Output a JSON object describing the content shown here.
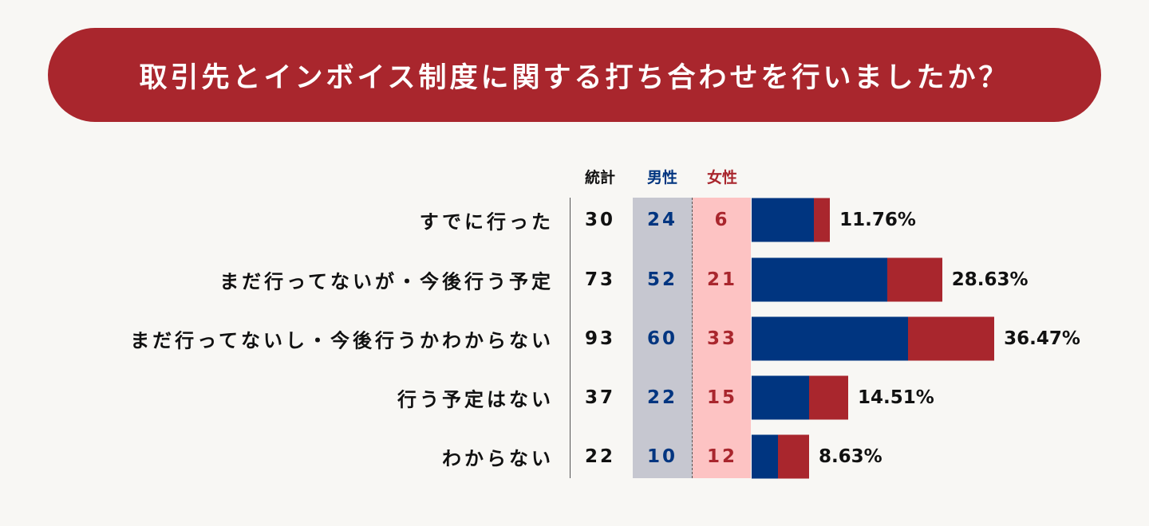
{
  "title": "取引先とインボイス制度に関する打ち合わせを行いましたか？",
  "colors": {
    "male": "#003580",
    "female": "#a9262d"
  },
  "chart_data": {
    "type": "bar",
    "stacked": true,
    "orientation": "horizontal",
    "title": "取引先とインボイス制度に関する打ち合わせを行いましたか？",
    "headers": {
      "total": "統計",
      "male": "男性",
      "female": "女性"
    },
    "categories": [
      "すでに行った",
      "まだ行ってないが・今後行う予定",
      "まだ行ってないし・今後行うかわからない",
      "行う予定はない",
      "わからない"
    ],
    "total": [
      30,
      73,
      93,
      37,
      22
    ],
    "series": [
      {
        "name": "男性",
        "values": [
          24,
          52,
          60,
          22,
          10
        ]
      },
      {
        "name": "女性",
        "values": [
          6,
          21,
          33,
          15,
          12
        ]
      }
    ],
    "percent_labels": [
      "11.76%",
      "28.63%",
      "36.47%",
      "14.51%",
      "8.63%"
    ]
  }
}
